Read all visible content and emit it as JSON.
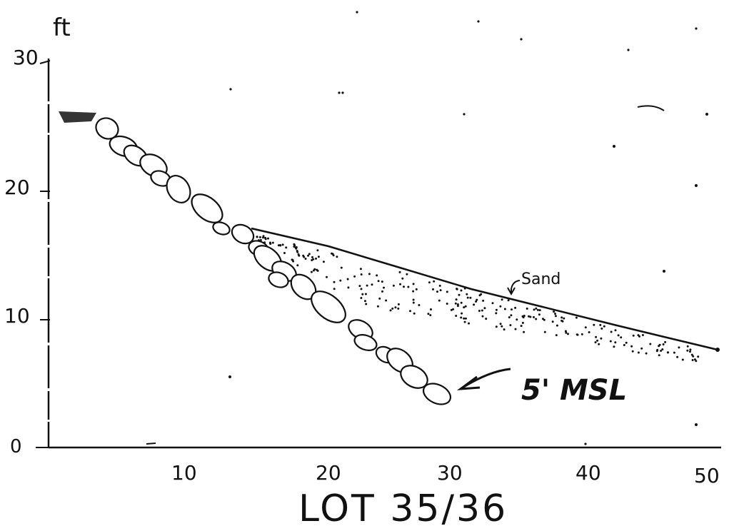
{
  "diagram": {
    "title": "LOT 35/36",
    "y_axis_label": "ft",
    "y_ticks": [
      "0",
      "10",
      "20",
      "30"
    ],
    "x_ticks": [
      "10",
      "20",
      "30",
      "40",
      "50"
    ],
    "annotations": {
      "sand": "Sand",
      "msl": "5' MSL"
    }
  },
  "chart_data": {
    "type": "line",
    "title": "LOT 35/36",
    "xlabel": "",
    "ylabel": "ft",
    "xlim": [
      0,
      50
    ],
    "ylim": [
      0,
      30
    ],
    "grid": false,
    "series": [
      {
        "x": [
          0,
          3.5,
          7,
          10,
          13,
          16,
          19,
          22,
          25,
          28.5
        ],
        "y": [
          26,
          25.5,
          22.5,
          20.5,
          18,
          15,
          12.5,
          10,
          7.5,
          5.2
        ]
      },
      {
        "x": [
          14.5,
          20,
          25,
          30,
          35,
          40,
          45,
          49.5
        ],
        "y": [
          16.7,
          15.2,
          13.8,
          12.4,
          11.2,
          9.6,
          8.3,
          7.4
        ]
      }
    ]
  }
}
